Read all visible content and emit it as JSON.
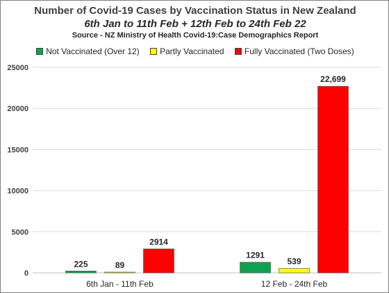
{
  "title": "Number of Covid-19 Cases by Vaccination Status in New Zealand",
  "subtitle": "6th Jan to 11th Feb + 12th Feb to 24th Feb 22",
  "source": "Source - NZ Ministry of Health Covid-19:Case Demographics Report",
  "chart_data": {
    "type": "bar",
    "categories": [
      "6th Jan - 11th Feb",
      "12 Feb - 24th Feb"
    ],
    "series": [
      {
        "name": "Not Vaccinated (Over 12)",
        "color": "#0ea14f",
        "values": [
          225,
          1291
        ],
        "labels": [
          "225",
          "1291"
        ]
      },
      {
        "name": "Partly Vaccinated",
        "color": "#ffff00",
        "values": [
          89,
          539
        ],
        "labels": [
          "89",
          "539"
        ]
      },
      {
        "name": "Fully Vaccinated (Two Doses)",
        "color": "#ff0000",
        "values": [
          2914,
          22699
        ],
        "labels": [
          "2914",
          "22,699"
        ]
      }
    ],
    "ylim": [
      0,
      25000
    ],
    "yticks": [
      0,
      5000,
      10000,
      15000,
      20000,
      25000
    ],
    "grid": true,
    "legend": "top"
  }
}
